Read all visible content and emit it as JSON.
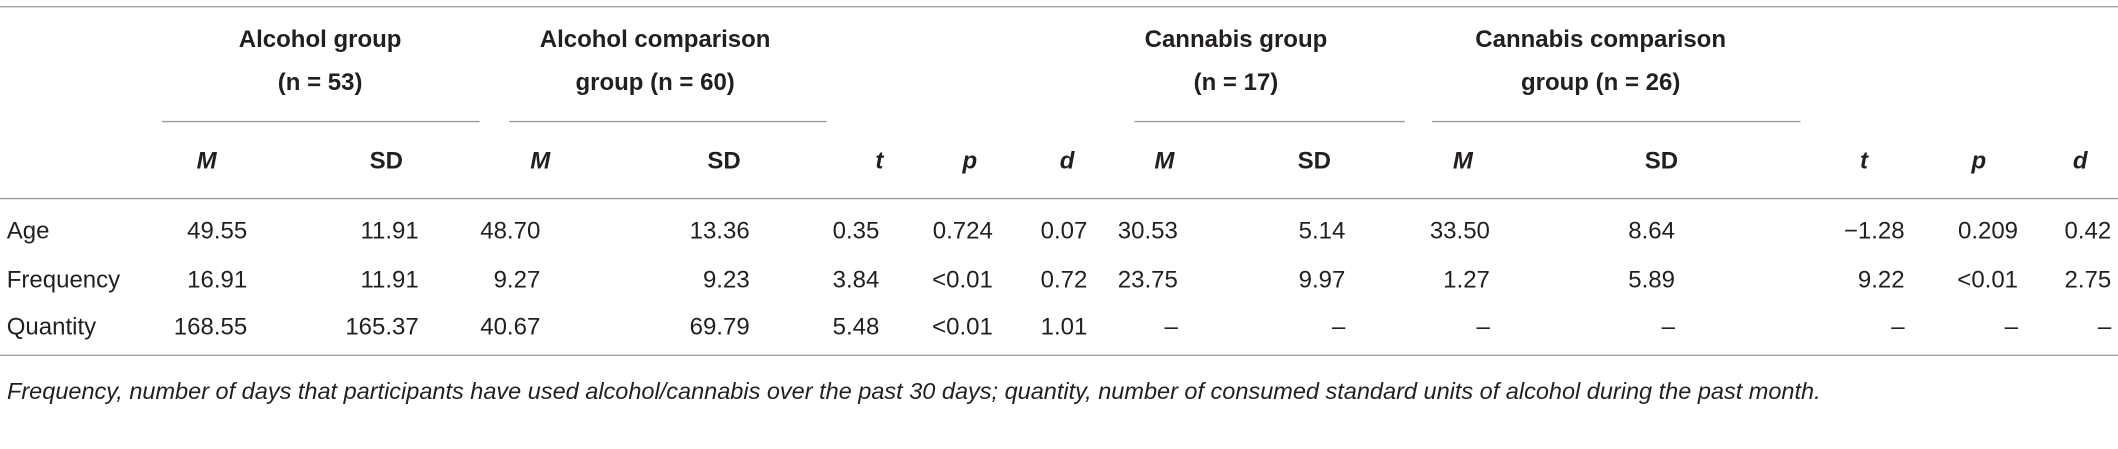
{
  "table": {
    "group_headers": [
      {
        "title": "Alcohol group",
        "n": "(n = 53)"
      },
      {
        "title": "Alcohol comparison",
        "n": "group (n = 60)"
      },
      {
        "title": "Cannabis group",
        "n": "(n = 17)"
      },
      {
        "title": "Cannabis comparison",
        "n": "group (n = 26)"
      }
    ],
    "column_headers": [
      "M",
      "SD",
      "M",
      "SD",
      "t",
      "p",
      "d",
      "M",
      "SD",
      "M",
      "SD",
      "t",
      "p",
      "d"
    ],
    "rows": [
      [
        "Age",
        "49.55",
        "11.91",
        "48.70",
        "13.36",
        "0.35",
        "0.724",
        "0.07",
        "30.53",
        "5.14",
        "33.50",
        "8.64",
        "−1.28",
        "0.209",
        "0.42"
      ],
      [
        "Frequency",
        "16.91",
        "11.91",
        "9.27",
        "9.23",
        "3.84",
        "<0.01",
        "0.72",
        "23.75",
        "9.97",
        "1.27",
        "5.89",
        "9.22",
        "<0.01",
        "2.75"
      ],
      [
        "Quantity",
        "168.55",
        "165.37",
        "40.67",
        "69.79",
        "5.48",
        "<0.01",
        "1.01",
        "–",
        "–",
        "–",
        "–",
        "–",
        "–",
        "–"
      ]
    ]
  },
  "footnote": "Frequency, number of days that participants have used alcohol/cannabis over the past 30 days; quantity, number of consumed standard units of alcohol during the past month."
}
